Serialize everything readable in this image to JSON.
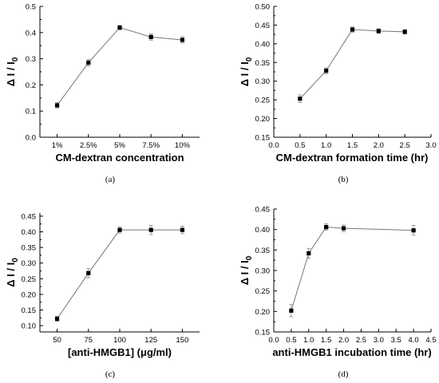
{
  "chart_data": [
    {
      "type": "line",
      "panel_label": "(a)",
      "xlabel": "CM-dextran concentration",
      "ylabel": "Δ I / I0",
      "x_scale": "category",
      "categories": [
        "1%",
        "2.5%",
        "5%",
        "7.5%",
        "10%"
      ],
      "ylim": [
        0.0,
        0.5
      ],
      "yticks": [
        "0.0",
        "0.1",
        "0.2",
        "0.3",
        "0.4",
        "0.5"
      ],
      "series": [
        {
          "values": [
            0.122,
            0.285,
            0.419,
            0.383,
            0.372
          ],
          "errors": [
            0.01,
            0.012,
            0.008,
            0.012,
            0.012
          ]
        }
      ]
    },
    {
      "type": "line",
      "panel_label": "(b)",
      "xlabel": "CM-dextran formation time (hr)",
      "ylabel": "Δ I / I0",
      "x_scale": "linear",
      "xlim": [
        0.0,
        3.0
      ],
      "xticks": [
        "0.0",
        "0.5",
        "1.0",
        "1.5",
        "2.0",
        "2.5",
        "3.0"
      ],
      "ylim": [
        0.15,
        0.5
      ],
      "yticks": [
        "0.15",
        "0.20",
        "0.25",
        "0.30",
        "0.35",
        "0.40",
        "0.45",
        "0.50"
      ],
      "series": [
        {
          "x": [
            0.5,
            1.0,
            1.5,
            2.0,
            2.5
          ],
          "values": [
            0.253,
            0.328,
            0.438,
            0.434,
            0.432
          ],
          "errors": [
            0.01,
            0.008,
            0.007,
            0.006,
            0.006
          ]
        }
      ]
    },
    {
      "type": "line",
      "panel_label": "(c)",
      "xlabel": "[anti-HMGB1] (μg/ml)",
      "ylabel": "Δ I / I0",
      "x_scale": "category",
      "categories": [
        "50",
        "75",
        "100",
        "125",
        "150"
      ],
      "ylim": [
        0.08,
        0.46
      ],
      "yticks": [
        "0.10",
        "0.15",
        "0.20",
        "0.25",
        "0.30",
        "0.35",
        "0.40",
        "0.45"
      ],
      "series": [
        {
          "values": [
            0.122,
            0.268,
            0.406,
            0.406,
            0.406
          ],
          "errors": [
            0.008,
            0.015,
            0.01,
            0.015,
            0.012
          ]
        }
      ]
    },
    {
      "type": "line",
      "panel_label": "(d)",
      "xlabel": "anti-HMGB1 incubation time (hr)",
      "ylabel": "Δ I / I0",
      "x_scale": "linear",
      "xlim": [
        0.0,
        4.5
      ],
      "xticks": [
        "0.0",
        "0.5",
        "1.0",
        "1.5",
        "2.0",
        "2.5",
        "3.0",
        "3.5",
        "4.0",
        "4.5"
      ],
      "ylim": [
        0.15,
        0.45
      ],
      "yticks": [
        "0.15",
        "0.20",
        "0.25",
        "0.30",
        "0.35",
        "0.40",
        "0.45"
      ],
      "series": [
        {
          "x": [
            0.5,
            1.0,
            1.5,
            2.0,
            4.0
          ],
          "values": [
            0.202,
            0.342,
            0.406,
            0.403,
            0.398
          ],
          "errors": [
            0.015,
            0.012,
            0.008,
            0.008,
            0.012
          ]
        }
      ]
    }
  ]
}
